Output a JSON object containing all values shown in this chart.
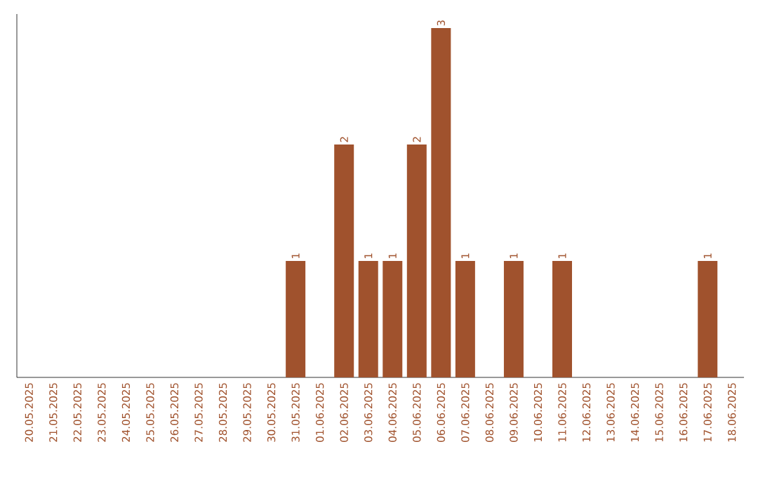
{
  "chart_data": {
    "type": "bar",
    "color": "#a0522d",
    "categories": [
      "20.05.2025",
      "21.05.2025",
      "22.05.2025",
      "23.05.2025",
      "24.05.2025",
      "25.05.2025",
      "26.05.2025",
      "27.05.2025",
      "28.05.2025",
      "29.05.2025",
      "30.05.2025",
      "31.05.2025",
      "01.06.2025",
      "02.06.2025",
      "03.06.2025",
      "04.06.2025",
      "05.06.2025",
      "06.06.2025",
      "07.06.2025",
      "08.06.2025",
      "09.06.2025",
      "10.06.2025",
      "11.06.2025",
      "12.06.2025",
      "13.06.2025",
      "14.06.2025",
      "15.06.2025",
      "16.06.2025",
      "17.06.2025",
      "18.06.2025"
    ],
    "values": [
      0,
      0,
      0,
      0,
      0,
      0,
      0,
      0,
      0,
      0,
      0,
      1,
      0,
      2,
      1,
      1,
      2,
      3,
      1,
      0,
      1,
      0,
      1,
      0,
      0,
      0,
      0,
      0,
      1,
      0
    ],
    "value_labels": [
      null,
      null,
      null,
      null,
      null,
      null,
      null,
      null,
      null,
      null,
      null,
      "1",
      null,
      "2",
      "1",
      "1",
      "2",
      "3",
      "1",
      null,
      "1",
      null,
      "1",
      null,
      null,
      null,
      null,
      null,
      "1",
      null
    ]
  }
}
